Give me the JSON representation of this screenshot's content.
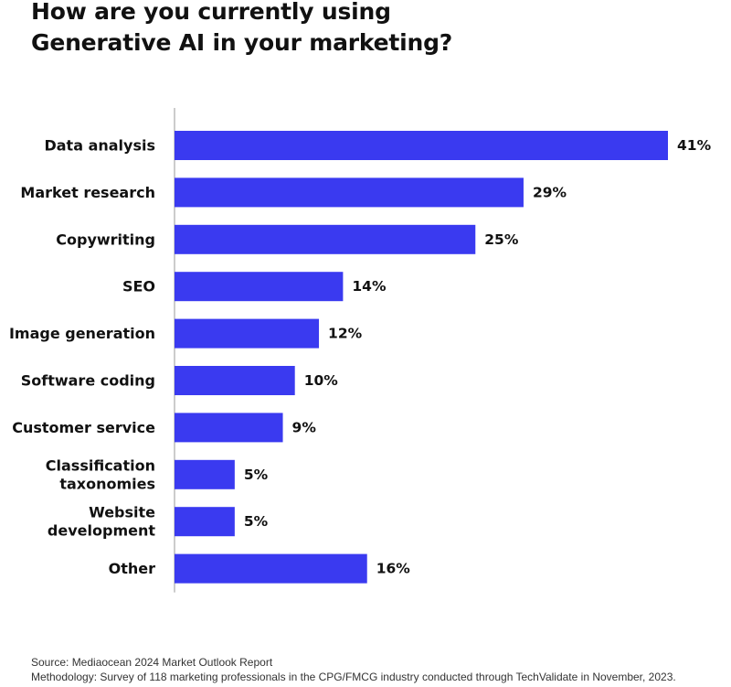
{
  "title_lines": [
    "How are you currently using",
    "Generative AI in your marketing?"
  ],
  "source": "Source: Mediaocean 2024 Market Outlook Report",
  "methodology": "Methodology: Survey of 118 marketing professionals in the CPG/FMCG industry conducted through TechValidate in November, 2023.",
  "colors": {
    "bar": "#3a3af0",
    "axis": "#bbbbbb",
    "text": "#111111"
  },
  "chart_data": {
    "type": "bar",
    "orientation": "horizontal",
    "title": "How are you currently using Generative AI in your marketing?",
    "categories": [
      [
        "Data analysis"
      ],
      [
        "Market research"
      ],
      [
        "Copywriting"
      ],
      [
        "SEO"
      ],
      [
        "Image generation"
      ],
      [
        "Software coding"
      ],
      [
        "Customer service"
      ],
      [
        "Classification",
        "taxonomies"
      ],
      [
        "Website",
        "development"
      ],
      [
        "Other"
      ]
    ],
    "values": [
      41,
      29,
      25,
      14,
      12,
      10,
      9,
      5,
      5,
      16
    ],
    "value_labels": [
      "41%",
      "29%",
      "25%",
      "14%",
      "12%",
      "10%",
      "9%",
      "5%",
      "5%",
      "16%"
    ],
    "unit": "%",
    "xlim": [
      0,
      41
    ],
    "grid": false,
    "legend": "none"
  }
}
